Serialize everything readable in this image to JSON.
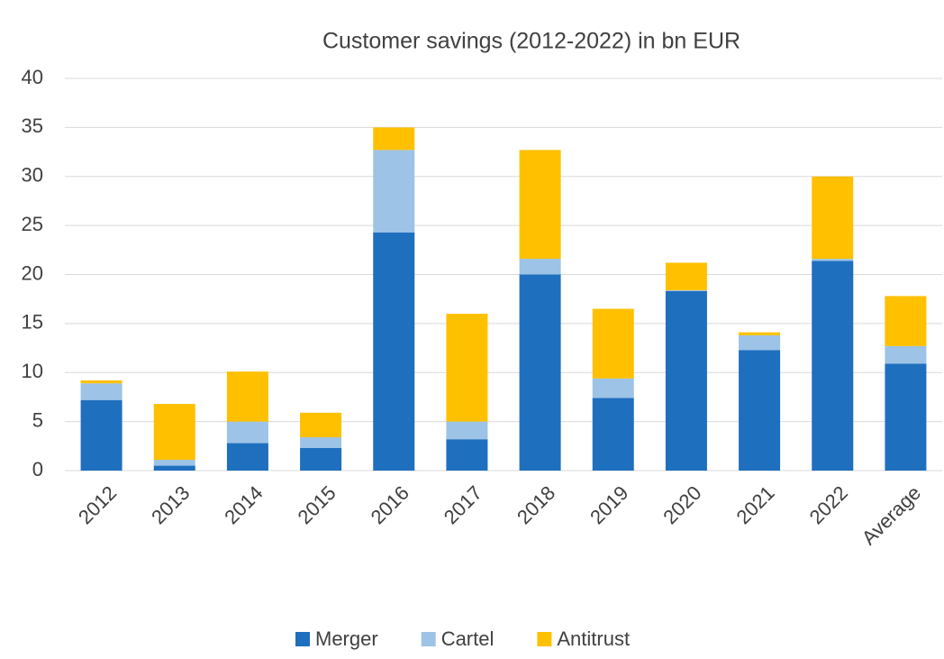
{
  "chart_data": {
    "type": "stacked_bar",
    "title": "Customer savings (2012-2022) in bn EUR",
    "categories": [
      "2012",
      "2013",
      "2014",
      "2015",
      "2016",
      "2017",
      "2018",
      "2019",
      "2020",
      "2021",
      "2022",
      "Average"
    ],
    "series": [
      {
        "name": "Merger",
        "color": "#1f6fbf",
        "values": [
          7.2,
          0.5,
          2.8,
          2.3,
          24.3,
          3.2,
          20.0,
          7.4,
          18.3,
          12.3,
          21.4,
          10.9
        ]
      },
      {
        "name": "Cartel",
        "color": "#9dc3e6",
        "values": [
          1.7,
          0.6,
          2.2,
          1.1,
          8.4,
          1.8,
          1.6,
          2.0,
          0.1,
          1.5,
          0.2,
          1.8
        ]
      },
      {
        "name": "Antitrust",
        "color": "#ffc000",
        "values": [
          0.3,
          5.7,
          5.1,
          2.5,
          2.3,
          11.0,
          11.1,
          7.1,
          2.8,
          0.3,
          8.4,
          5.1
        ]
      }
    ],
    "ylim": [
      0,
      40
    ],
    "yticks": [
      0,
      5,
      10,
      15,
      20,
      25,
      30,
      35,
      40
    ],
    "grid": true,
    "legend": "bottom"
  }
}
